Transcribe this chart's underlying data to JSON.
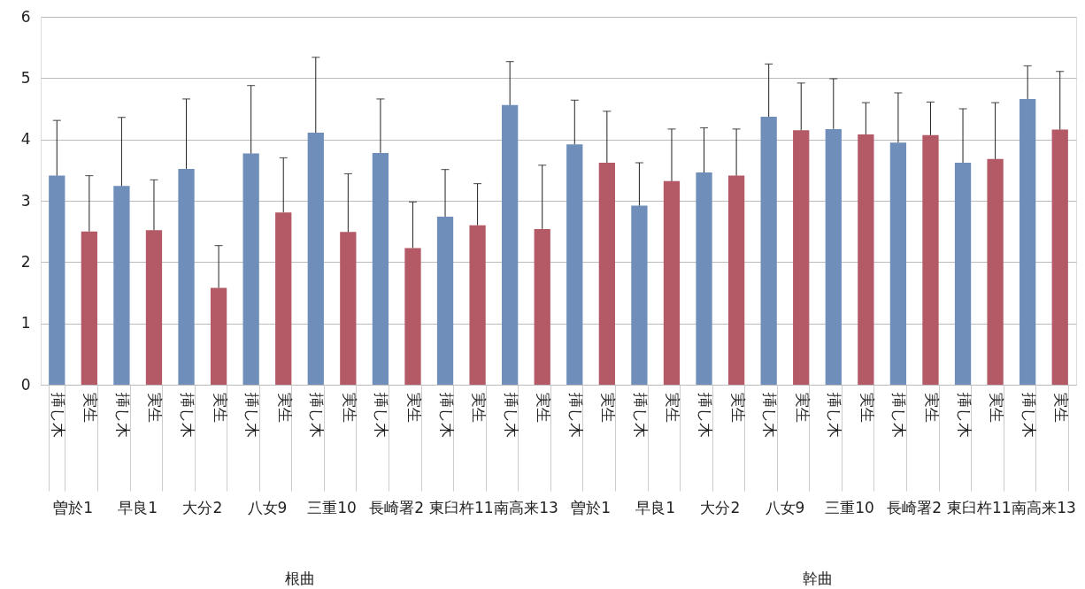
{
  "chart_data": {
    "type": "bar",
    "categories": [
      "挿し木",
      "実生",
      "挿し木",
      "実生",
      "挿し木",
      "実生",
      "挿し木",
      "実生",
      "挿し木",
      "実生",
      "挿し木",
      "実生",
      "挿し木",
      "実生",
      "挿し木",
      "実生",
      "挿し木",
      "実生",
      "挿し木",
      "実生",
      "挿し木",
      "実生",
      "挿し木",
      "実生",
      "挿し木",
      "実生",
      "挿し木",
      "実生",
      "挿し木",
      "実生",
      "挿し木",
      "実生"
    ],
    "values": [
      3.41,
      2.5,
      3.24,
      2.52,
      3.52,
      1.58,
      3.77,
      2.81,
      4.11,
      2.49,
      3.78,
      2.23,
      2.74,
      2.6,
      4.56,
      2.54,
      3.92,
      3.62,
      2.92,
      3.32,
      3.46,
      3.41,
      4.37,
      4.15,
      4.17,
      4.08,
      3.95,
      4.07,
      3.62,
      3.68,
      4.66,
      4.16
    ],
    "colors": [
      "#6f8fba",
      "#b35a66",
      "#6f8fba",
      "#b35a66",
      "#6f8fba",
      "#b35a66",
      "#6f8fba",
      "#b35a66",
      "#6f8fba",
      "#b35a66",
      "#6f8fba",
      "#b35a66",
      "#6f8fba",
      "#b35a66",
      "#6f8fba",
      "#b35a66",
      "#6f8fba",
      "#b35a66",
      "#6f8fba",
      "#b35a66",
      "#6f8fba",
      "#b35a66",
      "#6f8fba",
      "#b35a66",
      "#6f8fba",
      "#b35a66",
      "#6f8fba",
      "#b35a66",
      "#6f8fba",
      "#b35a66",
      "#6f8fba",
      "#b35a66"
    ],
    "errors": [
      [
        3.41,
        4.31
      ],
      [
        2.5,
        3.41
      ],
      [
        3.24,
        4.36
      ],
      [
        2.52,
        3.34
      ],
      [
        3.52,
        4.66
      ],
      [
        1.58,
        2.27
      ],
      [
        3.77,
        4.88
      ],
      [
        2.81,
        3.7
      ],
      [
        4.11,
        5.34
      ],
      [
        2.49,
        3.44
      ],
      [
        3.78,
        4.66
      ],
      [
        2.23,
        2.98
      ],
      [
        2.74,
        3.51
      ],
      [
        2.6,
        3.28
      ],
      [
        4.56,
        5.27
      ],
      [
        2.54,
        3.58
      ],
      [
        3.92,
        4.64
      ],
      [
        3.62,
        4.46
      ],
      [
        2.92,
        3.62
      ],
      [
        3.32,
        4.17
      ],
      [
        3.46,
        4.19
      ],
      [
        3.41,
        4.17
      ],
      [
        4.37,
        5.23
      ],
      [
        4.15,
        4.92
      ],
      [
        4.17,
        4.99
      ],
      [
        4.08,
        4.6
      ],
      [
        3.95,
        4.76
      ],
      [
        4.07,
        4.61
      ],
      [
        3.62,
        4.5
      ],
      [
        3.68,
        4.6
      ],
      [
        4.66,
        5.2
      ],
      [
        4.16,
        5.11
      ]
    ],
    "annotations": [
      "曽於1",
      "早良1",
      "大分2",
      "八女9",
      "三重10",
      "長崎署2",
      "東臼杵11",
      "南高来13",
      "曽於1",
      "早良1",
      "大分2",
      "八女9",
      "三重10",
      "長崎署2",
      "東臼杵11",
      "南高来13",
      "根曲",
      "幹曲"
    ],
    "ylim": [
      0,
      6
    ],
    "yticks": [
      0,
      1,
      2,
      3,
      4,
      5,
      6
    ],
    "grid": "y"
  }
}
